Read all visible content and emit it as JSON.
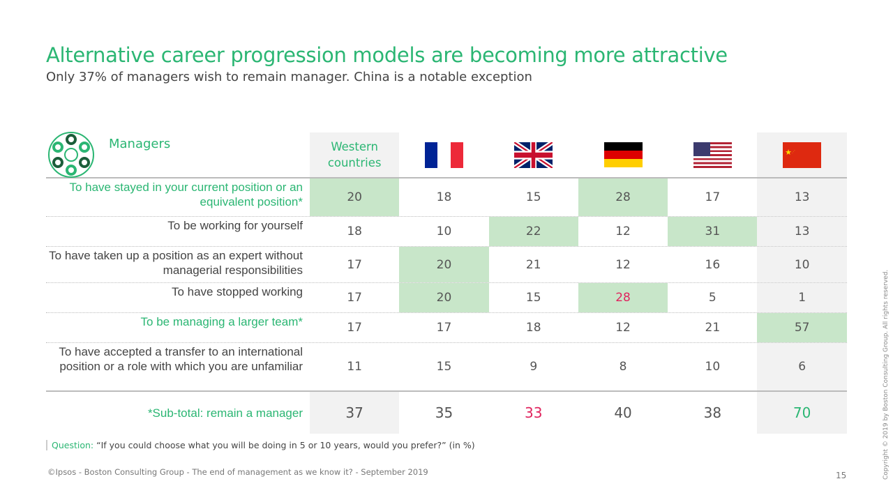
{
  "title": "Alternative career progression models are becoming more attractive",
  "subtitle": "Only 37% of managers wish to remain manager. China is a notable exception",
  "table": {
    "segment_label": "Managers",
    "columns": [
      {
        "label": "Western countries",
        "icon": "text"
      },
      {
        "label": "France",
        "icon": "france-flag"
      },
      {
        "label": "UK",
        "icon": "uk-flag"
      },
      {
        "label": "Germany",
        "icon": "germany-flag"
      },
      {
        "label": "USA",
        "icon": "usa-flag"
      },
      {
        "label": "China",
        "icon": "china-flag"
      }
    ],
    "rows": [
      {
        "label": "To have stayed in your current position or an equivalent position*",
        "values": [
          "20",
          "18",
          "15",
          "28",
          "17",
          "13"
        ]
      },
      {
        "label": "To be working for yourself",
        "values": [
          "18",
          "10",
          "22",
          "12",
          "31",
          "13"
        ]
      },
      {
        "label": "To have taken up a position as an expert without managerial responsibilities",
        "values": [
          "17",
          "20",
          "21",
          "12",
          "16",
          "10"
        ]
      },
      {
        "label": "To have stopped working",
        "values": [
          "17",
          "20",
          "15",
          "28",
          "5",
          "1"
        ]
      },
      {
        "label": "To be managing a larger team*",
        "values": [
          "17",
          "17",
          "18",
          "12",
          "21",
          "57"
        ]
      },
      {
        "label": "To have accepted a transfer to an international position or a role with which you are unfamiliar",
        "values": [
          "11",
          "15",
          "9",
          "8",
          "10",
          "6"
        ]
      }
    ],
    "subtotal": {
      "label": "*Sub-total: remain a manager",
      "values": [
        "37",
        "35",
        "33",
        "40",
        "38",
        "70"
      ]
    }
  },
  "question_label": "Question:",
  "question_text": "“If you could choose what you will be doing in 5 or 10 years, would you prefer?” (in %)",
  "footer": "©Ipsos - Boston Consulting Group - The end of management as we know it? - September 2019",
  "page_number": "15",
  "copyright": "Copyright © 2019 by Boston Consulting Group. All rights reserved.",
  "colors": {
    "accent": "#2bb673",
    "highlight": "#c8e6c9",
    "alert": "#e0245e"
  }
}
